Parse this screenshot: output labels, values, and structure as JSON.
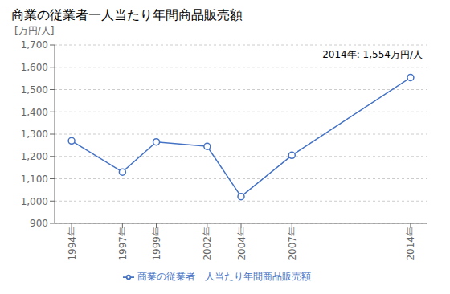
{
  "chart_data": {
    "type": "line",
    "title": "商業の従業者一人当たり年間商品販売額",
    "y_label": "[万円/人]",
    "annotation": "2014年: 1,554万円/人",
    "x": [
      1994,
      1997,
      1999,
      2002,
      2004,
      2007,
      2014
    ],
    "series": [
      {
        "name": "商業の従業者一人当たり年間商品販売額",
        "color": "#4472C4",
        "marker": "circle",
        "values": [
          1270,
          1130,
          1265,
          1245,
          1020,
          1205,
          1554
        ]
      }
    ],
    "xlim": [
      1993,
      2015
    ],
    "xticks": [
      {
        "value": 1994,
        "label": "1994年"
      },
      {
        "value": 1997,
        "label": "1997年"
      },
      {
        "value": 1999,
        "label": "1999年"
      },
      {
        "value": 2002,
        "label": "2002年"
      },
      {
        "value": 2004,
        "label": "2004年"
      },
      {
        "value": 2007,
        "label": "2007年"
      },
      {
        "value": 2014,
        "label": "2014年"
      }
    ],
    "ylim": [
      900,
      1700
    ],
    "yticks": [
      900,
      {
        "value": 1000,
        "label": "1,000"
      },
      {
        "value": 1100,
        "label": "1,100"
      },
      {
        "value": 1200,
        "label": "1,200"
      },
      {
        "value": 1300,
        "label": "1,300"
      },
      {
        "value": 1400,
        "label": "1,400"
      },
      {
        "value": 1500,
        "label": "1,500"
      },
      {
        "value": 1600,
        "label": "1,600"
      },
      {
        "value": 1700,
        "label": "1,700"
      }
    ],
    "grid": true,
    "legend": "bottom"
  }
}
